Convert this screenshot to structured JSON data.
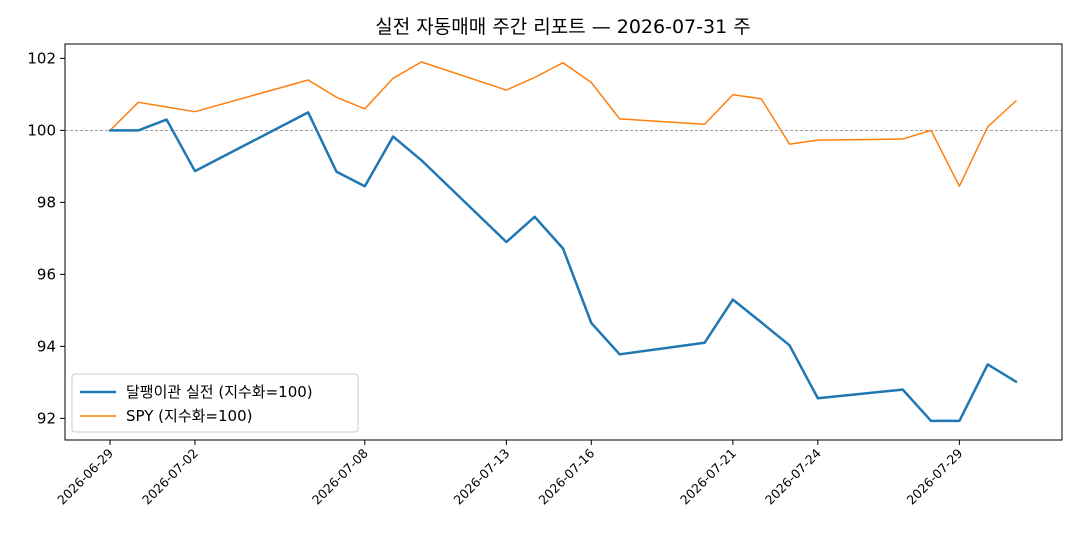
{
  "chart_data": {
    "type": "line",
    "title": "실전 자동매매 주간 리포트 — 2026-07-31 주",
    "xlabel": "",
    "ylabel": "",
    "ylim": [
      91.4,
      102.4
    ],
    "yticks": [
      92,
      94,
      96,
      98,
      100,
      102
    ],
    "x": [
      "2026-06-29",
      "2026-06-30",
      "2026-07-01",
      "2026-07-02",
      "2026-07-06",
      "2026-07-07",
      "2026-07-08",
      "2026-07-09",
      "2026-07-10",
      "2026-07-13",
      "2026-07-14",
      "2026-07-15",
      "2026-07-16",
      "2026-07-17",
      "2026-07-20",
      "2026-07-21",
      "2026-07-22",
      "2026-07-23",
      "2026-07-24",
      "2026-07-27",
      "2026-07-28",
      "2026-07-29",
      "2026-07-30",
      "2026-07-31"
    ],
    "xtick_labels": [
      "2026-06-29",
      "2026-07-02",
      "2026-07-08",
      "2026-07-13",
      "2026-07-16",
      "2026-07-21",
      "2026-07-24",
      "2026-07-29"
    ],
    "reference_line": 100,
    "grid": false,
    "legend_position": "lower-left",
    "series": [
      {
        "name": "달팽이관 실전 (지수화=100)",
        "color": "#1f77b4",
        "values": [
          100.0,
          100.0,
          100.3,
          98.87,
          100.5,
          98.85,
          98.45,
          99.83,
          99.17,
          96.9,
          97.6,
          96.72,
          94.65,
          93.78,
          94.1,
          95.3,
          94.67,
          94.03,
          92.56,
          92.8,
          91.93,
          91.93,
          93.5,
          93.02
        ]
      },
      {
        "name": "SPY (지수화=100)",
        "color": "#ff7f0e",
        "values": [
          100.0,
          100.78,
          100.65,
          100.52,
          101.4,
          100.92,
          100.6,
          101.45,
          101.9,
          101.12,
          101.47,
          101.88,
          101.33,
          100.32,
          100.17,
          100.99,
          100.88,
          99.62,
          99.73,
          99.76,
          100.0,
          98.45,
          100.1,
          100.82
        ]
      }
    ]
  }
}
